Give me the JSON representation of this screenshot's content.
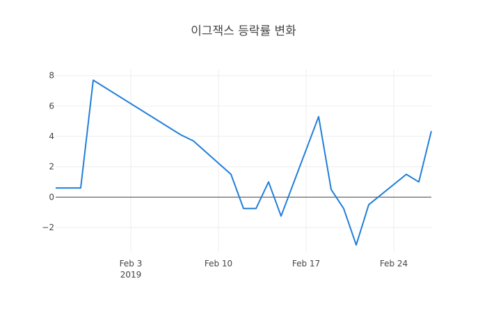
{
  "chart_data": {
    "type": "line",
    "title": "이그잭스 등락률 변화",
    "xlabel": "",
    "ylabel": "",
    "x_ticks": [
      {
        "date": "2019-02-03",
        "label": "Feb 3",
        "sublabel": "2019"
      },
      {
        "date": "2019-02-10",
        "label": "Feb 10",
        "sublabel": ""
      },
      {
        "date": "2019-02-17",
        "label": "Feb 17",
        "sublabel": ""
      },
      {
        "date": "2019-02-24",
        "label": "Feb 24",
        "sublabel": ""
      }
    ],
    "y_ticks": [
      -2,
      0,
      2,
      4,
      6,
      8
    ],
    "xlim": [
      "2019-01-28",
      "2019-02-27"
    ],
    "ylim": [
      -3.6,
      8.4
    ],
    "grid": true,
    "zero_line": true,
    "series": [
      {
        "color": "#1f7ed9",
        "x": [
          "2019-01-28",
          "2019-01-29",
          "2019-01-30",
          "2019-01-31",
          "2019-02-07",
          "2019-02-08",
          "2019-02-11",
          "2019-02-12",
          "2019-02-13",
          "2019-02-14",
          "2019-02-15",
          "2019-02-18",
          "2019-02-19",
          "2019-02-20",
          "2019-02-21",
          "2019-02-22",
          "2019-02-25",
          "2019-02-26",
          "2019-02-27"
        ],
        "y": [
          0.6,
          0.6,
          0.6,
          7.7,
          4.1,
          3.7,
          1.5,
          -0.75,
          -0.75,
          1.0,
          -1.25,
          5.3,
          0.5,
          -0.75,
          -3.15,
          -0.5,
          1.5,
          1.0,
          4.35
        ]
      }
    ]
  }
}
